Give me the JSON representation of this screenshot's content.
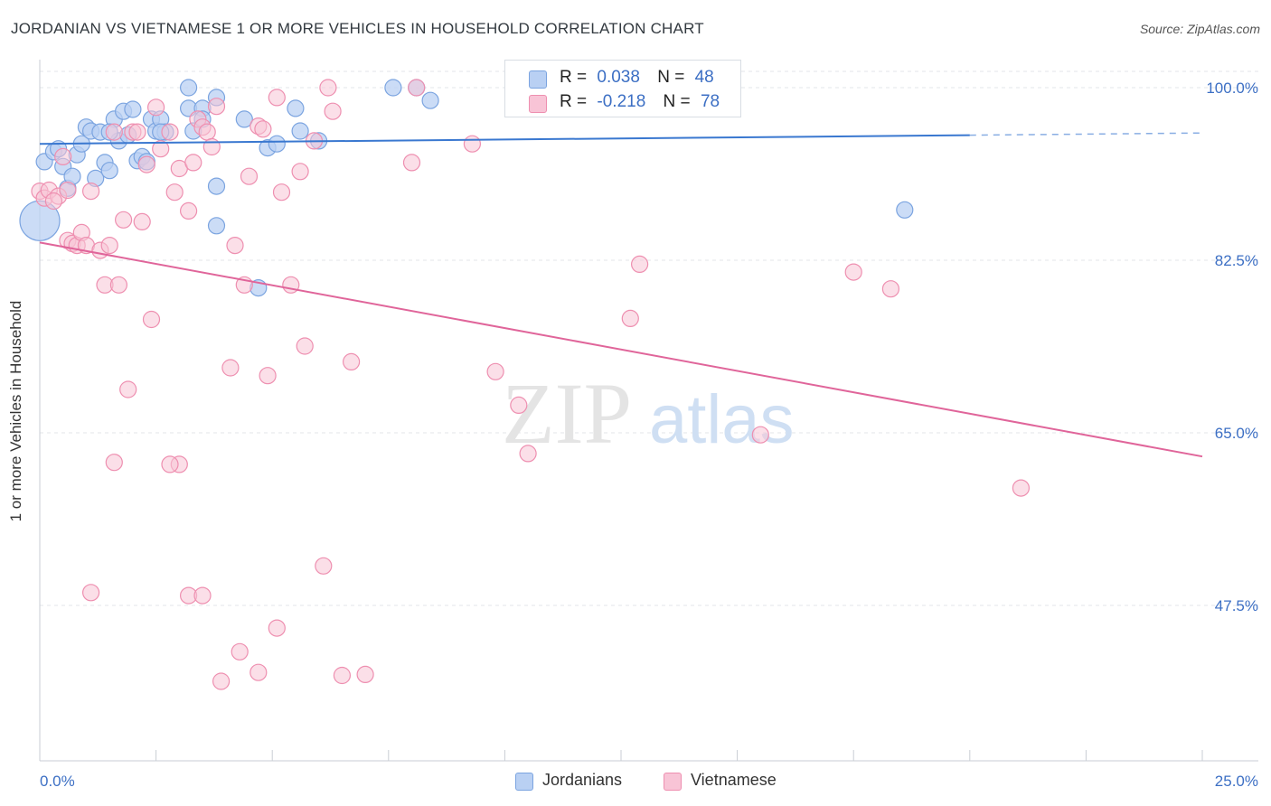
{
  "header": {
    "title": "JORDANIAN VS VIETNAMESE 1 OR MORE VEHICLES IN HOUSEHOLD CORRELATION CHART",
    "source": "Source: ZipAtlas.com"
  },
  "watermark": {
    "zip": "ZIP",
    "atlas": "atlas"
  },
  "legend": {
    "rows": [
      {
        "name": "Jordanians",
        "r_label": "R =",
        "r_value": "0.038",
        "n_label": "N =",
        "n_value": "48",
        "color": "#7ba4e0",
        "fill": "#b9d0f3"
      },
      {
        "name": "Vietnamese",
        "r_label": "R =",
        "r_value": "-0.218",
        "n_label": "N =",
        "n_value": "78",
        "color": "#ee8fb0",
        "fill": "#f8c4d6"
      }
    ]
  },
  "chart_data": {
    "type": "scatter",
    "title": "JORDANIAN VS VIETNAMESE 1 OR MORE VEHICLES IN HOUSEHOLD CORRELATION CHART",
    "xlabel": "",
    "ylabel": "1 or more Vehicles in Household",
    "xlim": [
      0,
      25
    ],
    "ylim": [
      32,
      103
    ],
    "x_tick_labels": [
      "0.0%",
      "25.0%"
    ],
    "y_ticks": [
      47.5,
      65.0,
      82.5,
      100.0
    ],
    "y_tick_labels": [
      "47.5%",
      "65.0%",
      "82.5%",
      "100.0%"
    ],
    "grid": true,
    "series": [
      {
        "name": "Jordanians",
        "color": "#3a78d0",
        "marker_fill": "#b9d0f3",
        "marker_stroke": "#7ba4e0",
        "trend": {
          "x0": 0,
          "y0": 94.3,
          "x1": 25,
          "y1": 95.4,
          "solid_until": 20
        },
        "points": [
          [
            0.1,
            92.5
          ],
          [
            0.3,
            93.5
          ],
          [
            0.4,
            93.8
          ],
          [
            0.5,
            92
          ],
          [
            0.6,
            89.8
          ],
          [
            0.7,
            91
          ],
          [
            0.8,
            93.2
          ],
          [
            0.9,
            94.3
          ],
          [
            1.0,
            96
          ],
          [
            1.1,
            95.6
          ],
          [
            1.2,
            90.8
          ],
          [
            1.3,
            95.5
          ],
          [
            1.4,
            92.4
          ],
          [
            1.5,
            91.6
          ],
          [
            1.6,
            96.8
          ],
          [
            1.7,
            94.6
          ],
          [
            1.8,
            97.6
          ],
          [
            1.9,
            95.2
          ],
          [
            2.0,
            97.8
          ],
          [
            2.1,
            92.6
          ],
          [
            2.2,
            93
          ],
          [
            2.3,
            92.5
          ],
          [
            2.4,
            96.8
          ],
          [
            2.5,
            95.6
          ],
          [
            2.6,
            96.8
          ],
          [
            2.7,
            95.5
          ],
          [
            3.2,
            100.0
          ],
          [
            3.2,
            97.9
          ],
          [
            3.3,
            95.6
          ],
          [
            3.5,
            97.9
          ],
          [
            3.8,
            99
          ],
          [
            3.8,
            86
          ],
          [
            3.8,
            90
          ],
          [
            4.4,
            96.8
          ],
          [
            4.7,
            79.7
          ],
          [
            4.9,
            93.9
          ],
          [
            5.1,
            94.3
          ],
          [
            5.5,
            97.9
          ],
          [
            5.6,
            95.6
          ],
          [
            6.0,
            94.6
          ],
          [
            7.6,
            100.0
          ],
          [
            8.1,
            100.0
          ],
          [
            8.4,
            98.7
          ],
          [
            18.6,
            87.6
          ],
          [
            0.0,
            86.5
          ],
          [
            2.6,
            95.5
          ],
          [
            1.5,
            95.5
          ],
          [
            3.5,
            96.8
          ]
        ]
      },
      {
        "name": "Vietnamese",
        "color": "#e0659a",
        "marker_fill": "#f8c4d6",
        "marker_stroke": "#ee8fb0",
        "trend": {
          "x0": 0,
          "y0": 84.3,
          "x1": 25,
          "y1": 62.6
        },
        "points": [
          [
            0.0,
            89.5
          ],
          [
            0.1,
            88.8
          ],
          [
            0.2,
            89.6
          ],
          [
            0.4,
            89
          ],
          [
            0.5,
            93
          ],
          [
            0.6,
            89.6
          ],
          [
            0.6,
            84.5
          ],
          [
            0.7,
            84.2
          ],
          [
            0.8,
            84.0
          ],
          [
            0.9,
            85.3
          ],
          [
            1.0,
            84.0
          ],
          [
            1.1,
            89.5
          ],
          [
            1.3,
            83.5
          ],
          [
            1.4,
            80
          ],
          [
            1.5,
            84
          ],
          [
            1.6,
            95.5
          ],
          [
            1.7,
            80
          ],
          [
            1.8,
            86.6
          ],
          [
            1.9,
            69.4
          ],
          [
            2.0,
            95.5
          ],
          [
            2.1,
            95.5
          ],
          [
            2.2,
            86.4
          ],
          [
            2.3,
            92.2
          ],
          [
            2.4,
            76.5
          ],
          [
            2.5,
            98
          ],
          [
            2.6,
            93.8
          ],
          [
            2.8,
            95.5
          ],
          [
            2.9,
            89.4
          ],
          [
            3.0,
            91.8
          ],
          [
            3.0,
            61.8
          ],
          [
            3.2,
            87.5
          ],
          [
            3.3,
            92.4
          ],
          [
            3.4,
            96.8
          ],
          [
            3.5,
            96
          ],
          [
            3.6,
            95.5
          ],
          [
            3.7,
            94
          ],
          [
            3.8,
            98.1
          ],
          [
            4.1,
            71.6
          ],
          [
            4.2,
            84
          ],
          [
            4.4,
            80
          ],
          [
            4.5,
            91
          ],
          [
            4.7,
            96.1
          ],
          [
            4.8,
            95.8
          ],
          [
            4.9,
            70.8
          ],
          [
            5.1,
            99
          ],
          [
            5.2,
            89.4
          ],
          [
            5.4,
            80
          ],
          [
            5.6,
            91.5
          ],
          [
            5.7,
            73.8
          ],
          [
            5.9,
            94.6
          ],
          [
            6.1,
            51.5
          ],
          [
            6.2,
            100.0
          ],
          [
            6.3,
            97.6
          ],
          [
            6.7,
            72.2
          ],
          [
            8.0,
            92.4
          ],
          [
            8.1,
            100.0
          ],
          [
            9.3,
            94.3
          ],
          [
            9.8,
            71.2
          ],
          [
            10.3,
            67.8
          ],
          [
            10.5,
            62.9
          ],
          [
            12.7,
            76.6
          ],
          [
            12.9,
            82.1
          ],
          [
            15.5,
            64.8
          ],
          [
            17.5,
            81.3
          ],
          [
            18.3,
            79.6
          ],
          [
            21.1,
            59.4
          ],
          [
            1.6,
            62
          ],
          [
            1.1,
            48.8
          ],
          [
            3.2,
            48.5
          ],
          [
            3.5,
            48.5
          ],
          [
            4.3,
            42.8
          ],
          [
            4.7,
            40.7
          ],
          [
            5.1,
            45.2
          ],
          [
            3.9,
            39.8
          ],
          [
            6.5,
            40.4
          ],
          [
            7.0,
            40.5
          ],
          [
            2.8,
            61.8
          ],
          [
            0.3,
            88.5
          ]
        ]
      }
    ]
  },
  "bottom_legend": {
    "items": [
      {
        "label": "Jordanians",
        "fill": "#b9d0f3",
        "stroke": "#7ba4e0"
      },
      {
        "label": "Vietnamese",
        "fill": "#f8c4d6",
        "stroke": "#ee8fb0"
      }
    ]
  },
  "colors": {
    "axis_text": "#3c6fc4",
    "grid": "#e3e6ea",
    "axis": "#c9ced4"
  }
}
